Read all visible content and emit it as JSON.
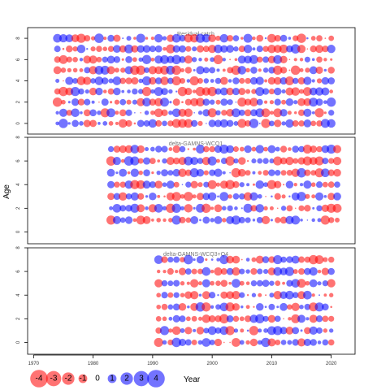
{
  "chart_data": [
    {
      "type": "bubble",
      "title": "Residual catch",
      "x_range": [
        1974,
        2020
      ],
      "ages": [
        0,
        1,
        2,
        3,
        4,
        5,
        6,
        7,
        8
      ],
      "y_ticks": [
        0,
        2,
        4,
        6,
        8
      ],
      "ylim": [
        -1,
        9
      ],
      "description": "bubble grid, residuals by year and age (blue positive, red negative)"
    },
    {
      "type": "bubble",
      "title": "delta-GAMNS-WCQ1",
      "x_range": [
        1983,
        2021
      ],
      "ages": [
        1,
        2,
        3,
        4,
        5,
        6,
        7
      ],
      "y_ticks": [
        0,
        2,
        4,
        6,
        8
      ],
      "ylim": [
        -1,
        8
      ]
    },
    {
      "type": "bubble",
      "title": "delta-GAMNS-WCQ3+Q4",
      "x_range": [
        1991,
        2020
      ],
      "ages": [
        0,
        1,
        2,
        3,
        4,
        5,
        6,
        7
      ],
      "y_ticks": [
        0,
        2,
        4,
        6,
        8
      ],
      "ylim": [
        -1,
        8
      ]
    }
  ],
  "x_axis": {
    "label": "Year",
    "ticks": [
      "1970",
      "1980",
      "1990",
      "2000",
      "2010",
      "2020"
    ],
    "tick_values": [
      1970,
      1980,
      1990,
      2000,
      2010,
      2020
    ],
    "xlim": [
      1969,
      2024
    ]
  },
  "y_axis": {
    "label": "Age"
  },
  "legend": {
    "values": [
      -4,
      -3,
      -2,
      -1,
      0,
      1,
      2,
      3,
      4
    ],
    "labels": [
      "-4",
      "-3",
      "-2",
      "-1",
      "0",
      "1",
      "2",
      "3",
      "4"
    ]
  },
  "colors": {
    "positive": "#0000ff",
    "negative": "#ff0000",
    "frame": "#000000"
  }
}
